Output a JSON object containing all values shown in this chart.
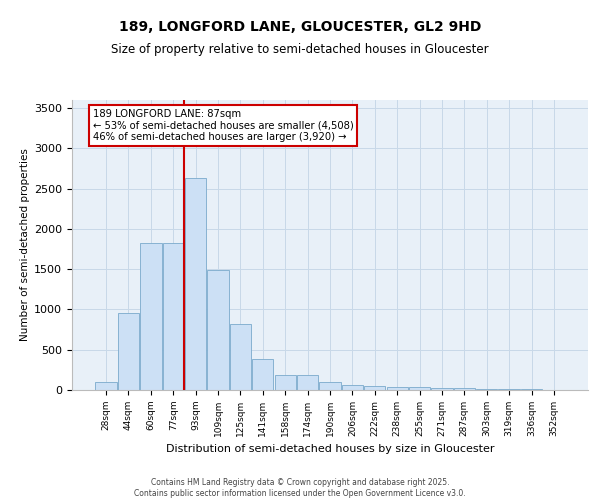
{
  "title1": "189, LONGFORD LANE, GLOUCESTER, GL2 9HD",
  "title2": "Size of property relative to semi-detached houses in Gloucester",
  "xlabel": "Distribution of semi-detached houses by size in Gloucester",
  "ylabel": "Number of semi-detached properties",
  "categories": [
    "28sqm",
    "44sqm",
    "60sqm",
    "77sqm",
    "93sqm",
    "109sqm",
    "125sqm",
    "141sqm",
    "158sqm",
    "174sqm",
    "190sqm",
    "206sqm",
    "222sqm",
    "238sqm",
    "255sqm",
    "271sqm",
    "287sqm",
    "303sqm",
    "319sqm",
    "336sqm",
    "352sqm"
  ],
  "values": [
    95,
    950,
    1830,
    1830,
    2630,
    1490,
    820,
    380,
    185,
    185,
    95,
    65,
    55,
    40,
    35,
    30,
    20,
    10,
    10,
    8,
    5
  ],
  "bar_color": "#cce0f5",
  "bar_edge_color": "#7aaacc",
  "grid_color": "#c8d8e8",
  "background_color": "#e8f0f8",
  "vline_color": "#cc0000",
  "annotation_text": "189 LONGFORD LANE: 87sqm\n← 53% of semi-detached houses are smaller (4,508)\n46% of semi-detached houses are larger (3,920) →",
  "annotation_box_color": "#ffffff",
  "annotation_box_edge": "#cc0000",
  "footer_text": "Contains HM Land Registry data © Crown copyright and database right 2025.\nContains public sector information licensed under the Open Government Licence v3.0.",
  "ylim": [
    0,
    3600
  ],
  "yticks": [
    0,
    500,
    1000,
    1500,
    2000,
    2500,
    3000,
    3500
  ]
}
